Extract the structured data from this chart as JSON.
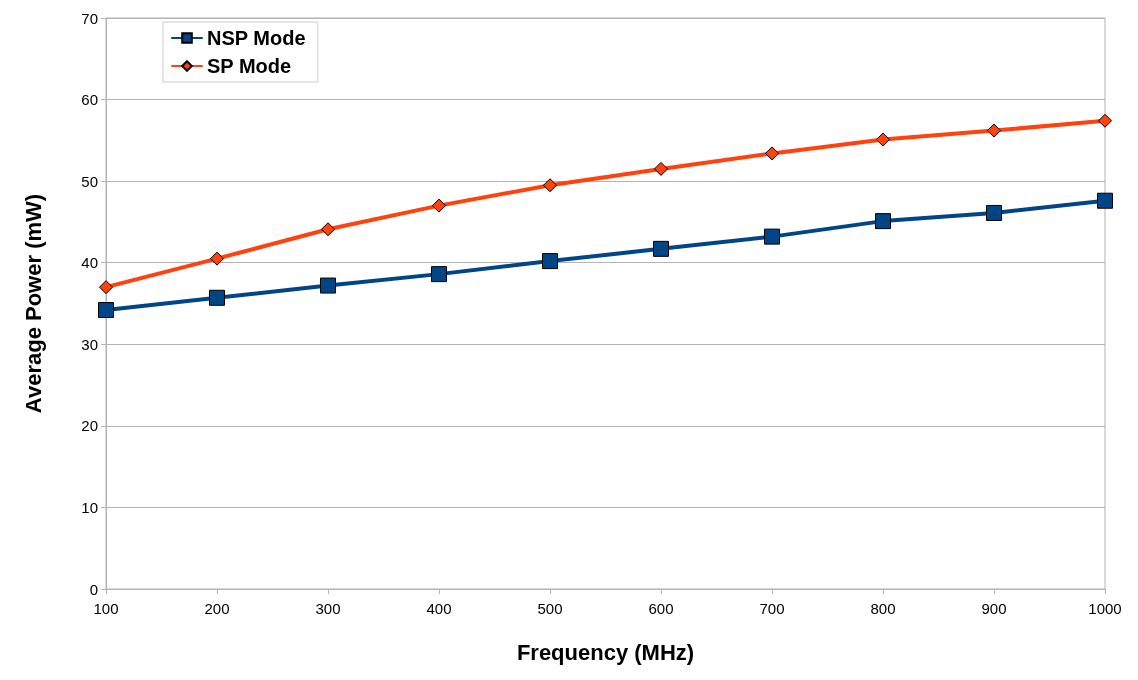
{
  "chart_data": {
    "type": "line",
    "xlabel": "Frequency (MHz)",
    "ylabel": "Average Power (mW)",
    "x": [
      100,
      200,
      300,
      400,
      500,
      600,
      700,
      800,
      900,
      1000
    ],
    "xlim": [
      100,
      1000
    ],
    "xticks": [
      100,
      200,
      300,
      400,
      500,
      600,
      700,
      800,
      900,
      1000
    ],
    "ylim": [
      0,
      70
    ],
    "yticks": [
      0,
      10,
      20,
      30,
      40,
      50,
      60,
      70
    ],
    "grid": "y",
    "legend": "top left",
    "line_style": "solid",
    "series": [
      {
        "name": "NSP Mode",
        "color": "#004586",
        "marker": "square",
        "values": [
          34.2,
          35.7,
          37.2,
          38.6,
          40.2,
          41.7,
          43.2,
          45.1,
          46.1,
          47.6
        ]
      },
      {
        "name": "SP Mode",
        "color": "#ff420e",
        "marker": "diamond",
        "values": [
          37.0,
          40.5,
          44.1,
          47.0,
          49.5,
          51.5,
          53.4,
          55.1,
          56.2,
          57.4
        ]
      }
    ]
  }
}
